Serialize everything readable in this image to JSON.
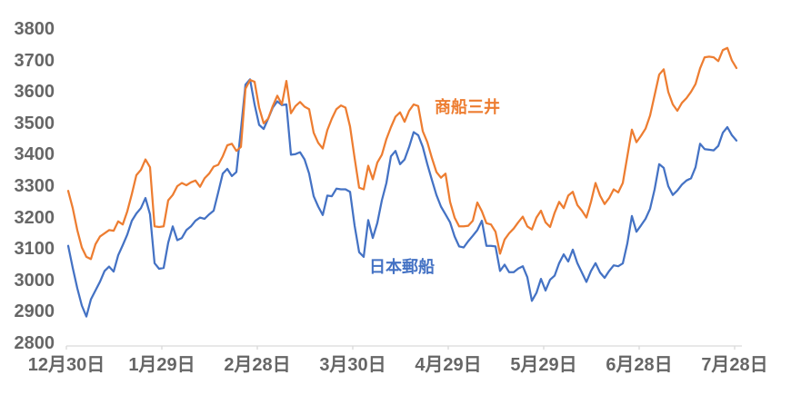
{
  "chart_data": {
    "type": "line",
    "title": "",
    "xlabel": "",
    "ylabel": "",
    "ylim": [
      2800,
      3800
    ],
    "y_tick_step": 100,
    "y_tick_labels": [
      "2800",
      "2900",
      "3000",
      "3100",
      "3200",
      "3300",
      "3400",
      "3500",
      "3600",
      "3700",
      "3800"
    ],
    "x_tick_labels": [
      "12月30日",
      "1月29日",
      "2月28日",
      "3月30日",
      "4月29日",
      "5月29日",
      "6月28日",
      "7月28日"
    ],
    "grid": false,
    "legend_position": "inline-labels",
    "axis_color": "#D9D9D9",
    "tick_label_color": "#666666",
    "series": [
      {
        "name": "商船三井",
        "color": "#ED7D31",
        "values": [
          3285,
          3230,
          3160,
          3105,
          3075,
          3068,
          3115,
          3140,
          3150,
          3160,
          3158,
          3188,
          3178,
          3220,
          3275,
          3335,
          3352,
          3385,
          3360,
          3172,
          3170,
          3172,
          3255,
          3272,
          3300,
          3310,
          3303,
          3312,
          3318,
          3298,
          3325,
          3340,
          3362,
          3368,
          3395,
          3430,
          3435,
          3412,
          3425,
          3610,
          3638,
          3632,
          3550,
          3500,
          3515,
          3555,
          3588,
          3560,
          3635,
          3532,
          3555,
          3568,
          3553,
          3545,
          3470,
          3438,
          3420,
          3478,
          3515,
          3545,
          3557,
          3550,
          3490,
          3390,
          3295,
          3290,
          3365,
          3322,
          3375,
          3400,
          3450,
          3488,
          3521,
          3535,
          3505,
          3540,
          3560,
          3555,
          3475,
          3440,
          3390,
          3345,
          3327,
          3340,
          3250,
          3200,
          3172,
          3172,
          3174,
          3190,
          3248,
          3220,
          3182,
          3178,
          3155,
          3085,
          3130,
          3150,
          3165,
          3185,
          3203,
          3172,
          3162,
          3200,
          3222,
          3185,
          3170,
          3215,
          3250,
          3230,
          3270,
          3282,
          3240,
          3222,
          3200,
          3250,
          3310,
          3270,
          3243,
          3262,
          3290,
          3280,
          3310,
          3395,
          3480,
          3440,
          3460,
          3483,
          3525,
          3590,
          3655,
          3672,
          3600,
          3560,
          3540,
          3565,
          3580,
          3600,
          3625,
          3675,
          3710,
          3712,
          3710,
          3698,
          3733,
          3740,
          3700,
          3676
        ]
      },
      {
        "name": "日本郵船",
        "color": "#4472C4",
        "values": [
          3110,
          3040,
          2975,
          2920,
          2885,
          2940,
          2968,
          2996,
          3030,
          3044,
          3028,
          3080,
          3112,
          3146,
          3190,
          3213,
          3230,
          3262,
          3210,
          3055,
          3037,
          3040,
          3120,
          3172,
          3128,
          3135,
          3160,
          3172,
          3190,
          3200,
          3196,
          3210,
          3222,
          3280,
          3340,
          3355,
          3332,
          3345,
          3480,
          3623,
          3640,
          3560,
          3495,
          3482,
          3515,
          3550,
          3570,
          3558,
          3560,
          3400,
          3402,
          3408,
          3385,
          3340,
          3268,
          3235,
          3208,
          3270,
          3268,
          3292,
          3290,
          3290,
          3282,
          3175,
          3090,
          3075,
          3192,
          3135,
          3183,
          3255,
          3310,
          3395,
          3412,
          3370,
          3385,
          3425,
          3472,
          3462,
          3425,
          3370,
          3320,
          3272,
          3235,
          3210,
          3185,
          3140,
          3108,
          3105,
          3125,
          3142,
          3160,
          3190,
          3110,
          3110,
          3108,
          3030,
          3050,
          3026,
          3026,
          3038,
          3045,
          3010,
          2935,
          2960,
          3005,
          2968,
          3002,
          3015,
          3055,
          3083,
          3060,
          3098,
          3055,
          3025,
          2995,
          3030,
          3055,
          3025,
          3008,
          3030,
          3048,
          3045,
          3054,
          3118,
          3205,
          3155,
          3175,
          3196,
          3228,
          3290,
          3370,
          3358,
          3300,
          3272,
          3286,
          3305,
          3318,
          3325,
          3360,
          3435,
          3418,
          3416,
          3414,
          3428,
          3470,
          3488,
          3462,
          3445
        ]
      }
    ]
  }
}
